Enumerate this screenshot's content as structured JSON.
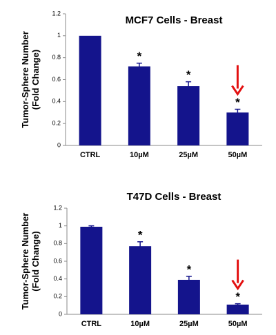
{
  "chart_data": [
    {
      "type": "bar",
      "title": "MCF7 Cells - Breast",
      "ylabel": [
        "Tumor-Sphere Number",
        "(Fold Change)"
      ],
      "categories": [
        "CTRL",
        "10µM",
        "25µM",
        "50µM"
      ],
      "values": [
        1.0,
        0.72,
        0.54,
        0.3
      ],
      "errors": [
        0,
        0.03,
        0.04,
        0.03
      ],
      "significance_marks": [
        null,
        "*",
        "*",
        "*"
      ],
      "color": "#14148c",
      "ylim": [
        0,
        1.2
      ],
      "yticks": [
        0,
        0.2,
        0.4,
        0.6,
        0.8,
        1,
        1.2
      ]
    },
    {
      "type": "bar",
      "title": "T47D Cells - Breast",
      "ylabel": [
        "Tumor-Sphere Number",
        "(Fold Change)"
      ],
      "categories": [
        "CTRL",
        "10µM",
        "25µM",
        "50µM"
      ],
      "values": [
        0.99,
        0.77,
        0.39,
        0.11
      ],
      "errors": [
        0.01,
        0.05,
        0.04,
        0.01
      ],
      "significance_marks": [
        null,
        "*",
        "*",
        "*"
      ],
      "color": "#14148c",
      "ylim": [
        0,
        1.2
      ],
      "yticks": [
        0,
        0.2,
        0.4,
        0.6,
        0.8,
        1,
        1.2
      ]
    }
  ]
}
